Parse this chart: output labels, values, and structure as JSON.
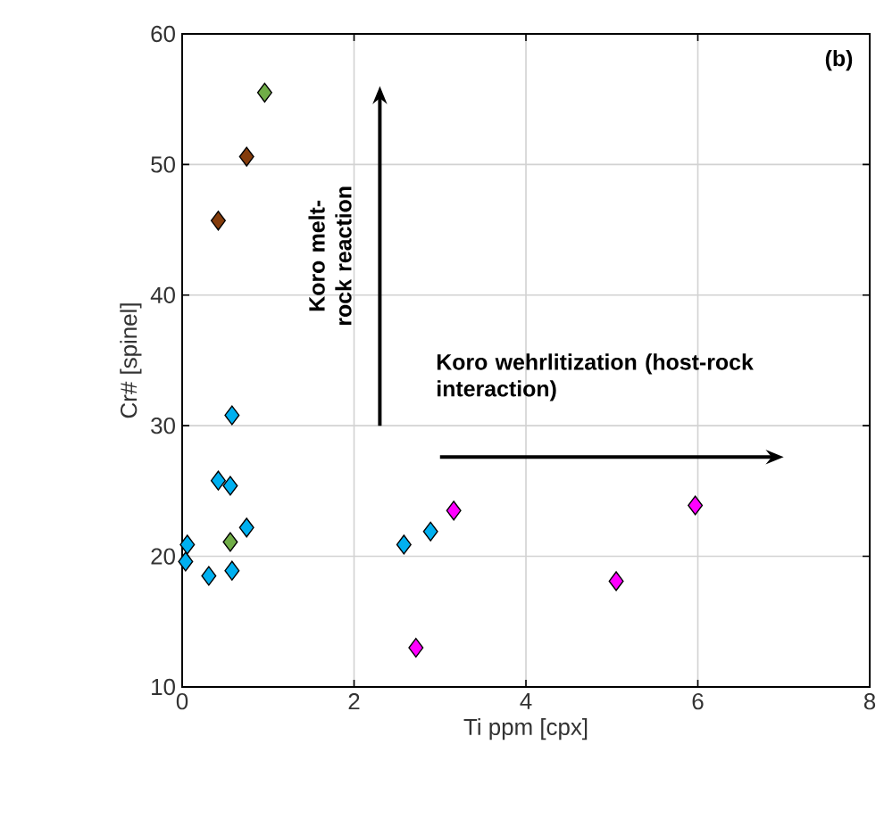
{
  "chart_data": {
    "type": "scatter",
    "xlabel": "Ti ppm [cpx]",
    "ylabel": "Cr# [spinel]",
    "xlim": [
      0,
      8
    ],
    "ylim": [
      10,
      60
    ],
    "xticks": [
      0,
      2,
      4,
      6,
      8
    ],
    "yticks": [
      10,
      20,
      30,
      40,
      50,
      60
    ],
    "grid": true,
    "marker": "diamond",
    "annotations": [
      "(b)",
      "Koro melt-rock reaction",
      "Koro wehrlitization (host-rock interaction)"
    ],
    "series": [
      {
        "color": "#00b0f0",
        "x": [
          0.06,
          0.04,
          0.31,
          0.58,
          0.75,
          0.42,
          0.56,
          0.58,
          2.58,
          2.89
        ],
        "values": [
          20.9,
          19.6,
          18.5,
          18.9,
          22.2,
          25.8,
          25.4,
          30.8,
          20.9,
          21.9
        ]
      },
      {
        "color": "#70ad47",
        "x": [
          0.56,
          0.96
        ],
        "values": [
          21.1,
          55.5
        ]
      },
      {
        "color": "#843c0c",
        "x": [
          0.75,
          0.42
        ],
        "values": [
          50.6,
          45.7
        ]
      },
      {
        "color": "#ff00ff",
        "x": [
          3.16,
          2.72,
          5.05,
          5.97
        ],
        "values": [
          23.5,
          13.0,
          18.1,
          23.9
        ]
      }
    ]
  }
}
